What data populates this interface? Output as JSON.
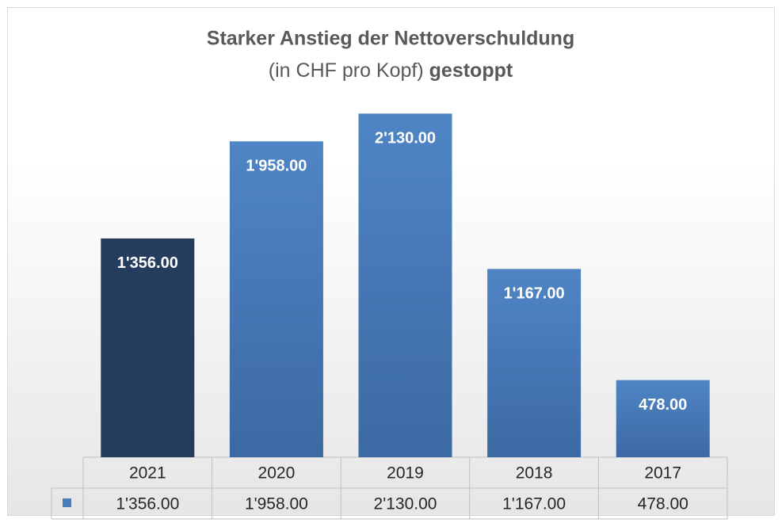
{
  "chart_data": {
    "type": "bar",
    "title": "Starker Anstieg der Nettoverschuldung",
    "subtitle": "(in CHF pro Kopf)",
    "subtitle_bold": "gestoppt",
    "categories": [
      "2021",
      "2020",
      "2019",
      "2018",
      "2017"
    ],
    "values": [
      1356,
      1958,
      2130,
      1167,
      478
    ],
    "value_labels": [
      "1'356.00",
      "1'958.00",
      "2'130.00",
      "1'167.00",
      "478.00"
    ],
    "colors": [
      "#243c5e",
      "#4a7ebb",
      "#4a7ebb",
      "#4a7ebb",
      "#4a7ebb"
    ],
    "legend_color": "#4a7ebb",
    "ylim": [
      0,
      2500
    ]
  }
}
